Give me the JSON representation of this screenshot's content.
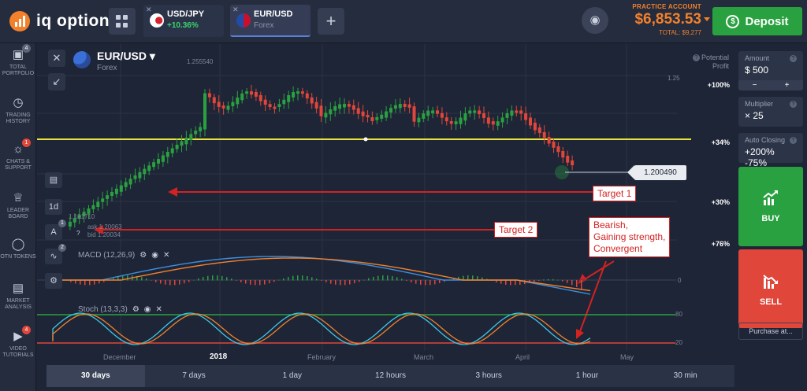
{
  "brand": {
    "name": "iq option"
  },
  "tabs": [
    {
      "pair": "USD/JPY",
      "sub": "+10.36%"
    },
    {
      "pair": "EUR/USD",
      "sub": "Forex"
    }
  ],
  "account": {
    "label": "PRACTICE ACCOUNT",
    "balance": "$6,853.53",
    "total": "TOTAL: $9,277"
  },
  "deposit_label": "Deposit",
  "sidebar": [
    {
      "label": "TOTAL PORTFOLIO",
      "badge": "4"
    },
    {
      "label": "TRADING HISTORY",
      "badge": ""
    },
    {
      "label": "CHATS & SUPPORT",
      "badge": "1"
    },
    {
      "label": "LEADER BOARD",
      "badge": ""
    },
    {
      "label": "OTN TOKENS",
      "badge": ""
    },
    {
      "label": "MARKET ANALYSIS",
      "badge": ""
    },
    {
      "label": "VIDEO TUTORIALS",
      "badge": "4"
    }
  ],
  "chart_header": {
    "asset": "EUR/USD",
    "category": "Forex",
    "potential_profit": "Potential Profit"
  },
  "profit_ticks": [
    "+100%",
    "+34%",
    "+30%",
    "+76%"
  ],
  "current_price": "1.200490",
  "price_labels": {
    "top": "1.255540",
    "scale": "1.25",
    "low": "1.181710",
    "ask": "ask 1.20063",
    "bid": "bid 1.20034"
  },
  "tools": {
    "timeframe": "1d",
    "draw_badge": "1",
    "indicator_badge": "2"
  },
  "indicators": {
    "macd": {
      "label": "MACD (12,26,9)",
      "zero": "0"
    },
    "stoch": {
      "label": "Stoch (13,3,3)",
      "upper": "80",
      "lower": "20"
    }
  },
  "annotations": {
    "target1": "Target 1",
    "target2": "Target 2",
    "note": [
      "Bearish,",
      "Gaining strength,",
      "Convergent"
    ]
  },
  "time_axis": [
    "December",
    "2018",
    "February",
    "March",
    "April",
    "May"
  ],
  "timeframes": [
    "30 days",
    "7 days",
    "1 day",
    "12 hours",
    "3 hours",
    "1 hour",
    "30 min"
  ],
  "active_timeframe": "30 days",
  "right_panel": {
    "amount_label": "Amount",
    "amount_value": "$ 500",
    "minus": "−",
    "plus": "+",
    "multiplier_label": "Multiplier",
    "multiplier_value": "× 25",
    "autoclose_label": "Auto Closing",
    "autoclose_value": "+200% -75%",
    "buy": "BUY",
    "sell": "SELL",
    "purchase": "Purchase at..."
  },
  "colors": {
    "bull": "#2aa141",
    "bear": "#e0463a",
    "accent": "#f3812b",
    "level": "#e8e23a",
    "annotation": "#d32222"
  }
}
